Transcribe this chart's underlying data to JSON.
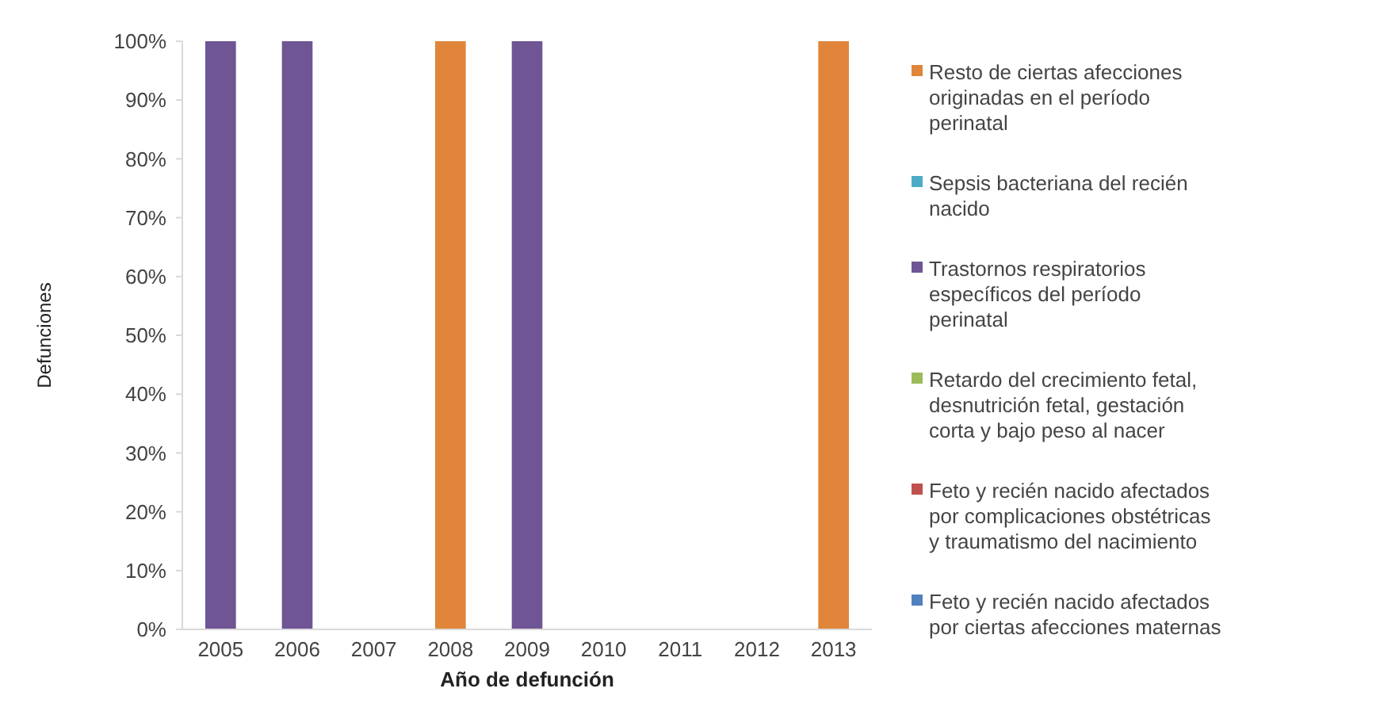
{
  "chart_data": {
    "type": "bar",
    "stacked": true,
    "xlabel": "Año de defunción",
    "ylabel": "Defunciones",
    "categories": [
      "2005",
      "2006",
      "2007",
      "2008",
      "2009",
      "2010",
      "2011",
      "2012",
      "2013"
    ],
    "ylim": [
      0,
      100
    ],
    "yticks": [
      {
        "value": 0,
        "label": "0%"
      },
      {
        "value": 10,
        "label": "10%"
      },
      {
        "value": 20,
        "label": "20%"
      },
      {
        "value": 30,
        "label": "30%"
      },
      {
        "value": 40,
        "label": "40%"
      },
      {
        "value": 50,
        "label": "50%"
      },
      {
        "value": 60,
        "label": "60%"
      },
      {
        "value": 70,
        "label": "70%"
      },
      {
        "value": 80,
        "label": "80%"
      },
      {
        "value": 90,
        "label": "90%"
      },
      {
        "value": 100,
        "label": "100%"
      }
    ],
    "legend": "right",
    "grid": false,
    "series": [
      {
        "name": "Feto y recién nacido afectados por ciertas afecciones maternas",
        "color": "#4f81bd",
        "values": [
          0,
          0,
          0,
          0,
          0,
          0,
          0,
          0,
          0
        ]
      },
      {
        "name": "Feto y recién nacido afectados por complicaciones obstétricas y traumatismo del nacimiento",
        "color": "#c0504d",
        "values": [
          0,
          0,
          0,
          0,
          0,
          0,
          0,
          0,
          0
        ]
      },
      {
        "name": "Retardo del crecimiento fetal, desnutrición fetal, gestación corta y bajo peso al nacer",
        "color": "#9bbb59",
        "values": [
          0,
          0,
          0,
          0,
          0,
          0,
          0,
          0,
          0
        ]
      },
      {
        "name": "Trastornos respiratorios específicos del período perinatal",
        "color": "#6f5594",
        "values": [
          100,
          100,
          0,
          0,
          100,
          0,
          0,
          0,
          0
        ]
      },
      {
        "name": "Sepsis bacteriana del recién nacido",
        "color": "#4bacc6",
        "values": [
          0,
          0,
          0,
          0,
          0,
          0,
          0,
          0,
          0
        ]
      },
      {
        "name": "Resto de ciertas afecciones originadas en el período perinatal",
        "color": "#e0853a",
        "values": [
          0,
          0,
          0,
          100,
          0,
          0,
          0,
          0,
          100
        ]
      }
    ]
  }
}
